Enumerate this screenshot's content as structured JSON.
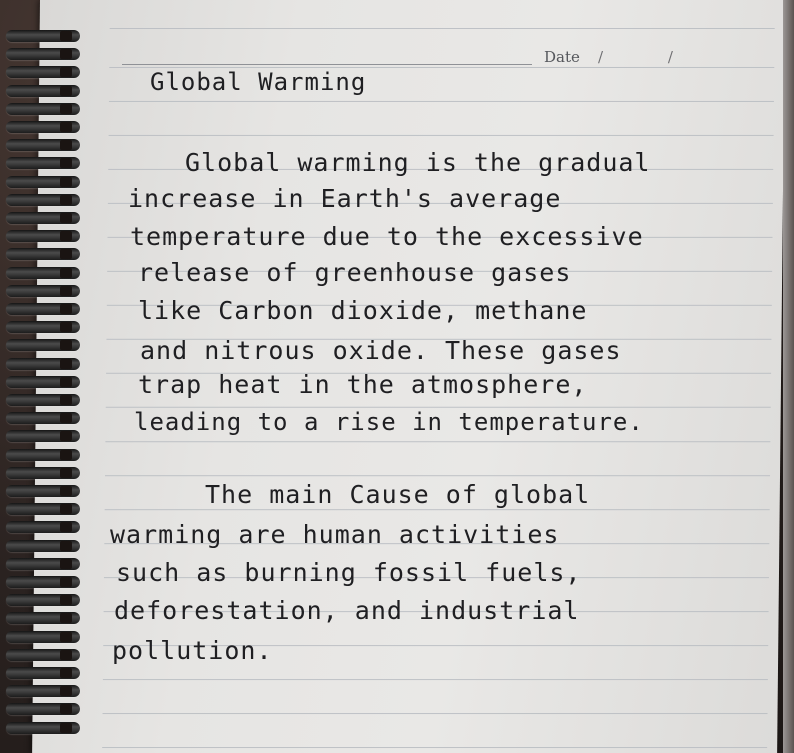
{
  "header": {
    "date_label": "Date",
    "date_slashes": "/ /"
  },
  "title": "Global Warming",
  "paragraphs": [
    {
      "lines": [
        "Global warming is the gradual",
        "increase in Earth's average",
        "temperature due to the excessive",
        "release of greenhouse gases",
        "like Carbon dioxide, methane",
        "and nitrous oxide. These gases",
        "trap heat in the atmosphere,",
        "leading to a rise in temperature."
      ]
    },
    {
      "lines": [
        "The main Cause of global",
        "warming are human activities",
        "such as burning fossil fuels,",
        "deforestation, and industrial",
        "pollution."
      ]
    }
  ]
}
